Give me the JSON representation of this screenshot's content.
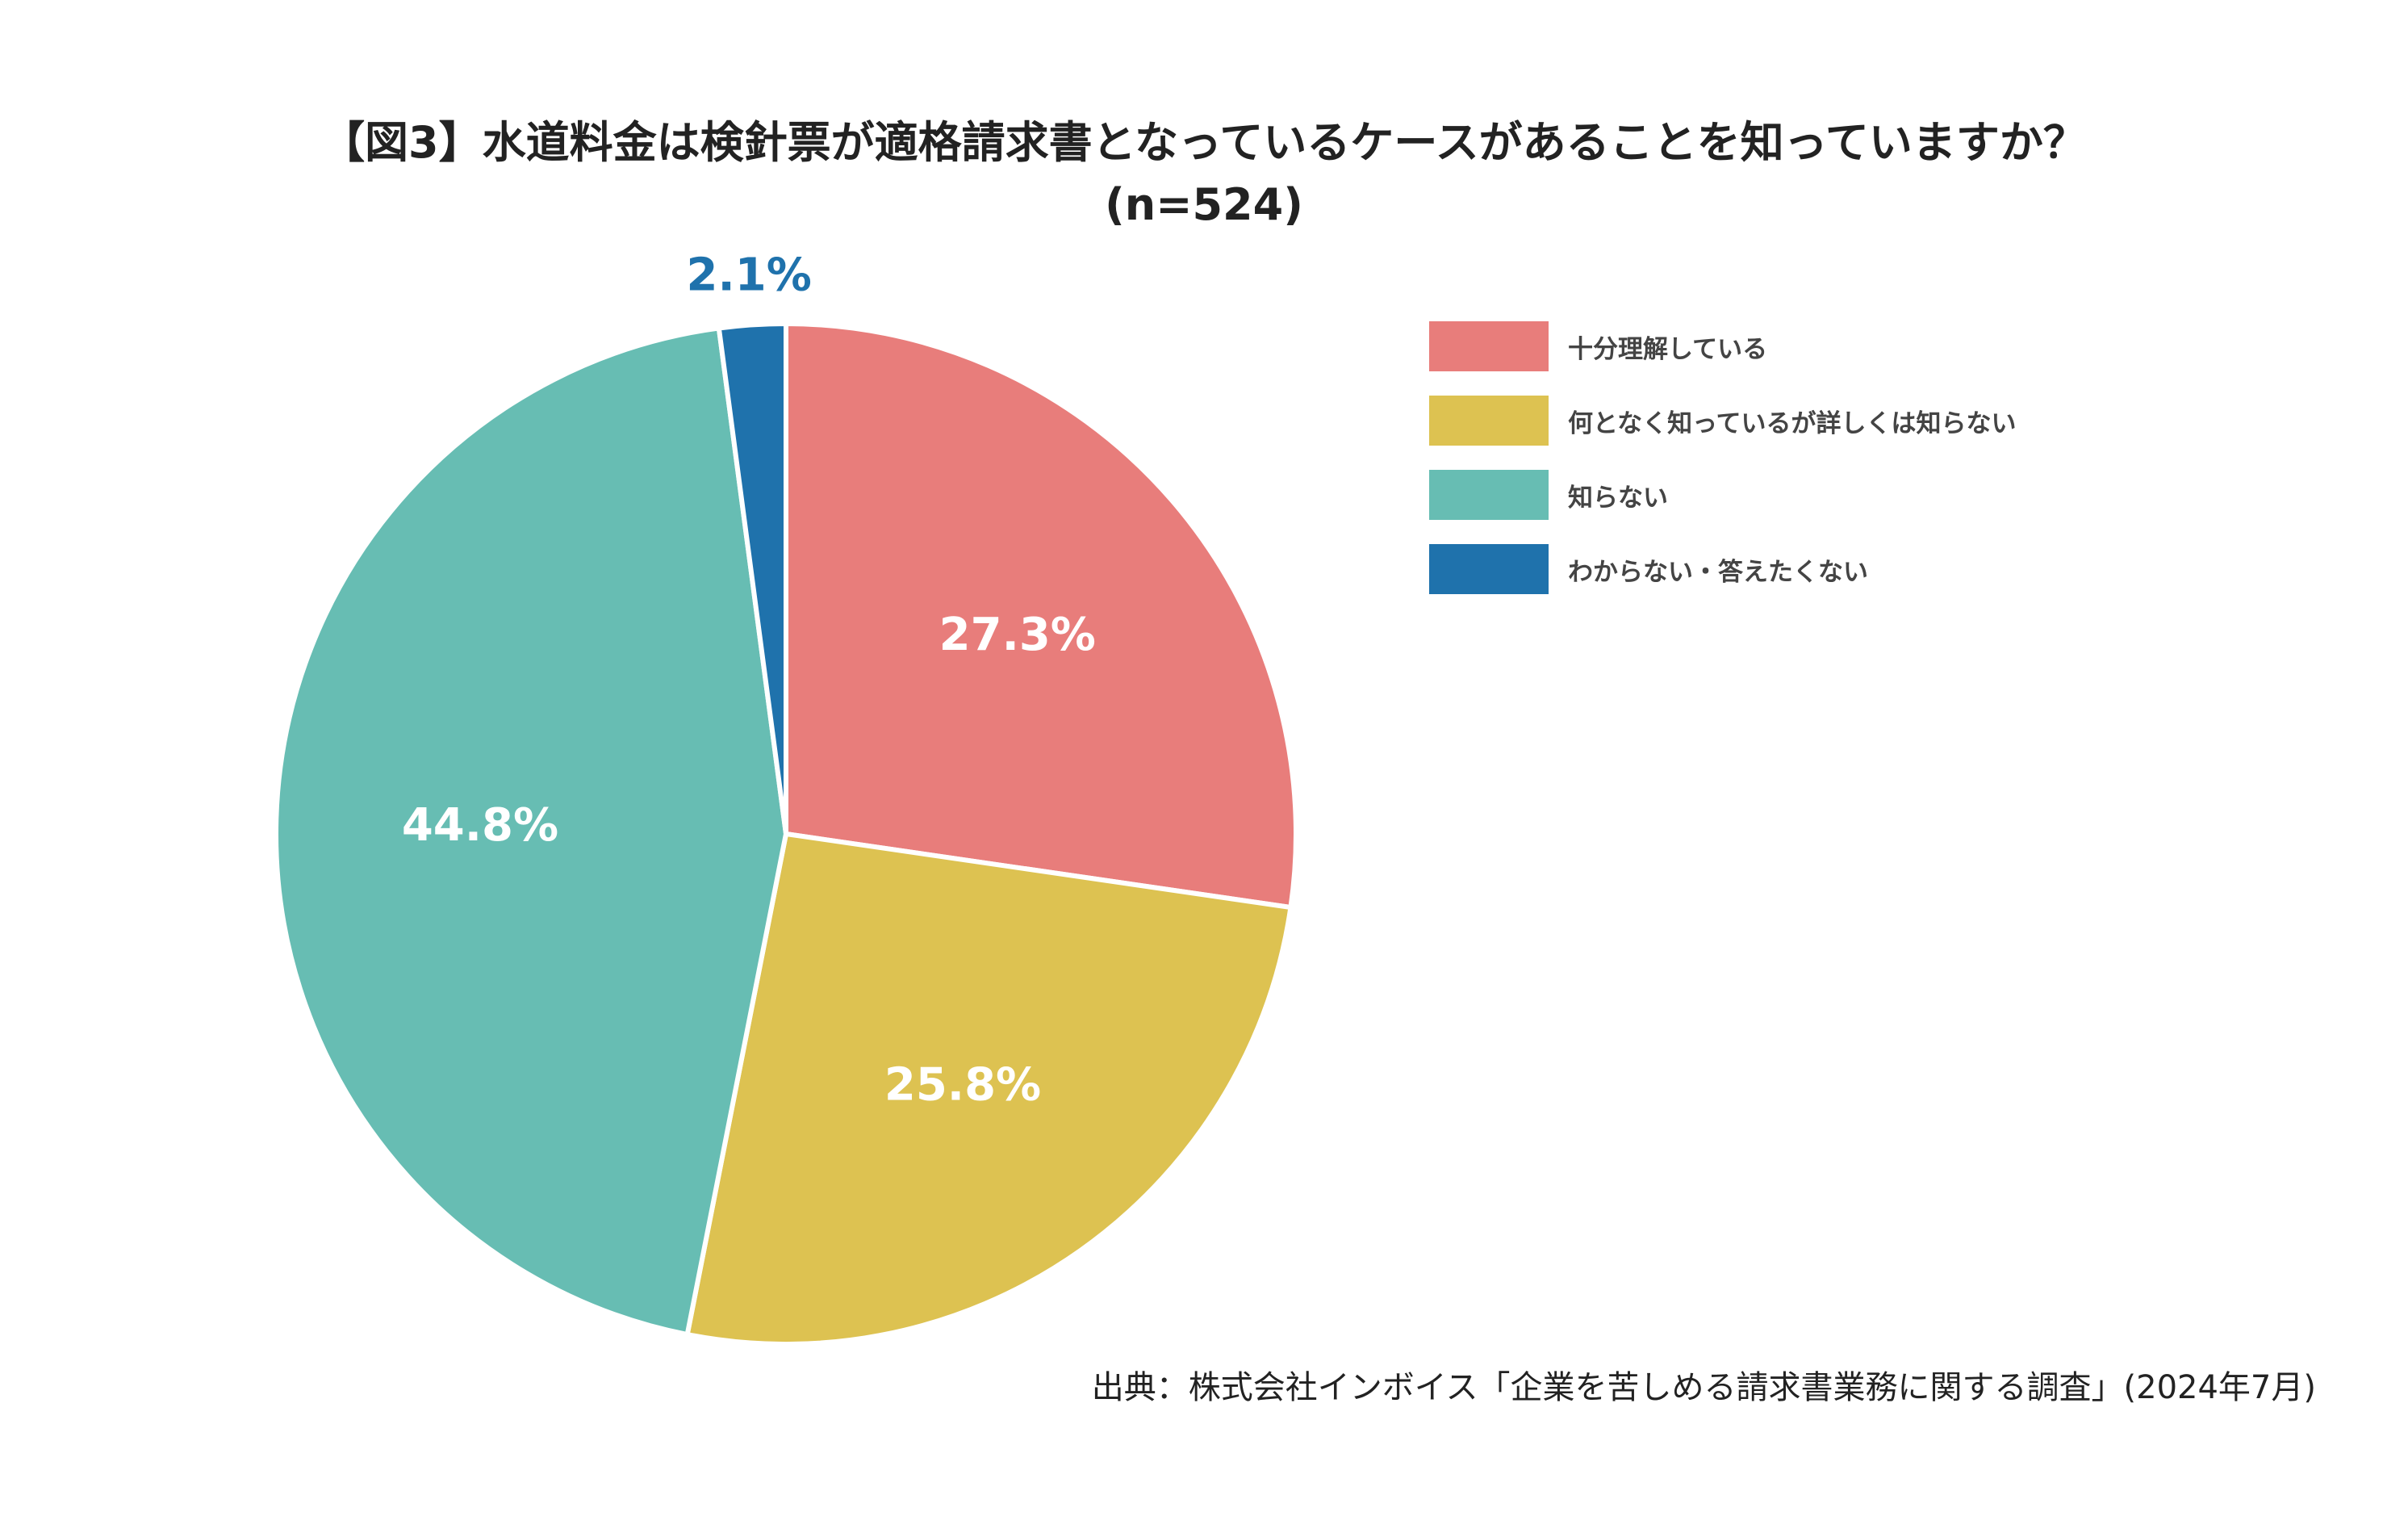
{
  "chart_data": {
    "type": "pie",
    "title": "【図3】水道料金は検針票が適格請求書となっているケースがあることを知っていますか？",
    "subtitle": "(n=524)",
    "start": "12 o'clock, clockwise",
    "legend_position": "right",
    "slices": [
      {
        "name": "十分理解している",
        "value": 27.3,
        "label": "27.3%",
        "color": "#E87D7B",
        "label_color": "#ffffff"
      },
      {
        "name": "何となく知っているが詳しくは知らない",
        "value": 25.8,
        "label": "25.8%",
        "color": "#DDC251",
        "label_color": "#ffffff"
      },
      {
        "name": "知らない",
        "value": 44.8,
        "label": "44.8%",
        "color": "#67BDB3",
        "label_color": "#ffffff"
      },
      {
        "name": "わからない・答えたくない",
        "value": 2.1,
        "label": "2.1%",
        "color": "#1F72AC",
        "label_color": "#1F72AC"
      }
    ]
  },
  "source": "出典：株式会社インボイス「企業を苦しめる請求書業務に関する調査」(2024年7月)"
}
